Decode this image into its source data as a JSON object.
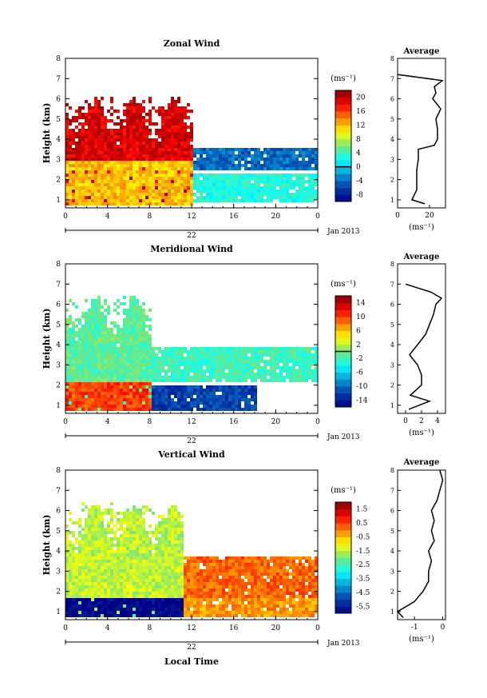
{
  "figure": {
    "date_label": "Jan 2013",
    "day_label": "22",
    "x_title": "Local Time",
    "y_title": "Height (km)",
    "avg_title": "Average",
    "unit": "(ms⁻¹)",
    "avg_unit": "(ms⁻¹)"
  },
  "chart_data": [
    {
      "type": "heatmap",
      "title": "Zonal Wind",
      "xlabel": "",
      "ylabel": "Height (km)",
      "xlim": [
        0,
        24
      ],
      "ylim": [
        0.6,
        8
      ],
      "x_ticks": [
        "0",
        "4",
        "8",
        "12",
        "16",
        "20",
        "0"
      ],
      "y_ticks": [
        "1",
        "2",
        "3",
        "4",
        "5",
        "6",
        "7",
        "8"
      ],
      "colorbar": {
        "label": "(ms⁻¹)",
        "range": [
          -10,
          22
        ],
        "ticks": [
          "20",
          "16",
          "12",
          "8",
          "4",
          "0",
          "-4",
          "-8"
        ],
        "tick_values": [
          20,
          16,
          12,
          8,
          4,
          0,
          -4,
          -8
        ],
        "contour_value": 0
      },
      "regions": [
        {
          "x": [
            0,
            12
          ],
          "top_km": 6.2,
          "value": 19
        },
        {
          "x": [
            0,
            12
          ],
          "y": [
            0.8,
            3.0
          ],
          "value": 12
        },
        {
          "x": [
            12,
            24
          ],
          "y": [
            2.5,
            3.6
          ],
          "value": -4
        },
        {
          "x": [
            12,
            24
          ],
          "y": [
            1.0,
            2.4
          ],
          "value": 3
        }
      ],
      "average": {
        "xlim": [
          0,
          30
        ],
        "x_ticks": [
          "0",
          "20"
        ],
        "height_km": [
          0.8,
          1.0,
          1.5,
          2.0,
          2.5,
          3.0,
          3.5,
          3.7,
          4.0,
          4.5,
          5.0,
          5.5,
          6.0,
          6.3,
          6.6,
          6.9,
          7.2
        ],
        "value": [
          17,
          9,
          12,
          12,
          12,
          13,
          13,
          23,
          25,
          25,
          24,
          27,
          22,
          24,
          23,
          28,
          0
        ]
      }
    },
    {
      "type": "heatmap",
      "title": "Meridional Wind",
      "xlabel": "",
      "ylabel": "Height (km)",
      "xlim": [
        0,
        24
      ],
      "ylim": [
        0.6,
        8
      ],
      "x_ticks": [
        "0",
        "4",
        "8",
        "12",
        "16",
        "20",
        "0"
      ],
      "y_ticks": [
        "1",
        "2",
        "3",
        "4",
        "5",
        "6",
        "7",
        "8"
      ],
      "colorbar": {
        "label": "(ms⁻¹)",
        "range": [
          -16,
          16
        ],
        "ticks": [
          "14",
          "10",
          "6",
          "2",
          "-2",
          "-6",
          "-10",
          "-14"
        ],
        "tick_values": [
          14,
          10,
          6,
          2,
          -2,
          -6,
          -10,
          -14
        ],
        "contour_value": 0
      },
      "regions": [
        {
          "x": [
            0,
            8
          ],
          "top_km": 6.5,
          "value": -1
        },
        {
          "x": [
            0,
            8
          ],
          "y": [
            0.8,
            2.2
          ],
          "value": 10
        },
        {
          "x": [
            8,
            24
          ],
          "y": [
            2.3,
            4.0
          ],
          "value": -2
        },
        {
          "x": [
            8,
            18
          ],
          "y": [
            0.8,
            2.0
          ],
          "value": -12
        }
      ],
      "average": {
        "xlim": [
          -1,
          5
        ],
        "x_ticks": [
          "0",
          "2",
          "4"
        ],
        "height_km": [
          0.8,
          1.2,
          1.5,
          2.0,
          2.5,
          3.0,
          3.5,
          4.0,
          4.5,
          5.0,
          5.5,
          6.0,
          6.3,
          6.6,
          7.0
        ],
        "value": [
          0.4,
          3.0,
          0.6,
          2.0,
          2.0,
          1.5,
          0.5,
          1.5,
          2.5,
          3.0,
          3.5,
          3.8,
          4.5,
          3.2,
          0
        ]
      }
    },
    {
      "type": "heatmap",
      "title": "Vertical Wind",
      "xlabel": "Local Time",
      "ylabel": "Height (km)",
      "xlim": [
        0,
        24
      ],
      "ylim": [
        0.6,
        8
      ],
      "x_ticks": [
        "0",
        "4",
        "8",
        "12",
        "16",
        "20",
        "0"
      ],
      "y_ticks": [
        "1",
        "2",
        "3",
        "4",
        "5",
        "6",
        "7",
        "8"
      ],
      "colorbar": {
        "label": "(ms⁻¹)",
        "range": [
          -6.0,
          2.0
        ],
        "ticks": [
          "1.5",
          "0.5",
          "-0.5",
          "-1.5",
          "-2.5",
          "-3.5",
          "-4.5",
          "-5.5"
        ],
        "tick_values": [
          1.5,
          0.5,
          -0.5,
          -1.5,
          -2.5,
          -3.5,
          -4.5,
          -5.5
        ]
      },
      "regions": [
        {
          "x": [
            0,
            11
          ],
          "top_km": 6.5,
          "value": -1.5
        },
        {
          "x": [
            0,
            11
          ],
          "y": [
            0.8,
            1.7
          ],
          "value": -5.5
        },
        {
          "x": [
            11,
            24
          ],
          "y": [
            0.8,
            3.8
          ],
          "value": 0.2
        }
      ],
      "average": {
        "xlim": [
          -1.6,
          0.1
        ],
        "x_ticks": [
          "-1",
          "0"
        ],
        "height_km": [
          0.7,
          1.0,
          1.5,
          2.0,
          2.5,
          3.0,
          3.5,
          4.0,
          4.5,
          5.0,
          5.5,
          6.0,
          6.5,
          7.0,
          7.5,
          8.0
        ],
        "value": [
          -1.4,
          -1.6,
          -1.0,
          -0.7,
          -0.5,
          -0.5,
          -0.4,
          -0.5,
          -0.3,
          -0.4,
          -0.3,
          -0.4,
          -0.2,
          -0.1,
          0.0,
          -0.1
        ]
      }
    }
  ]
}
